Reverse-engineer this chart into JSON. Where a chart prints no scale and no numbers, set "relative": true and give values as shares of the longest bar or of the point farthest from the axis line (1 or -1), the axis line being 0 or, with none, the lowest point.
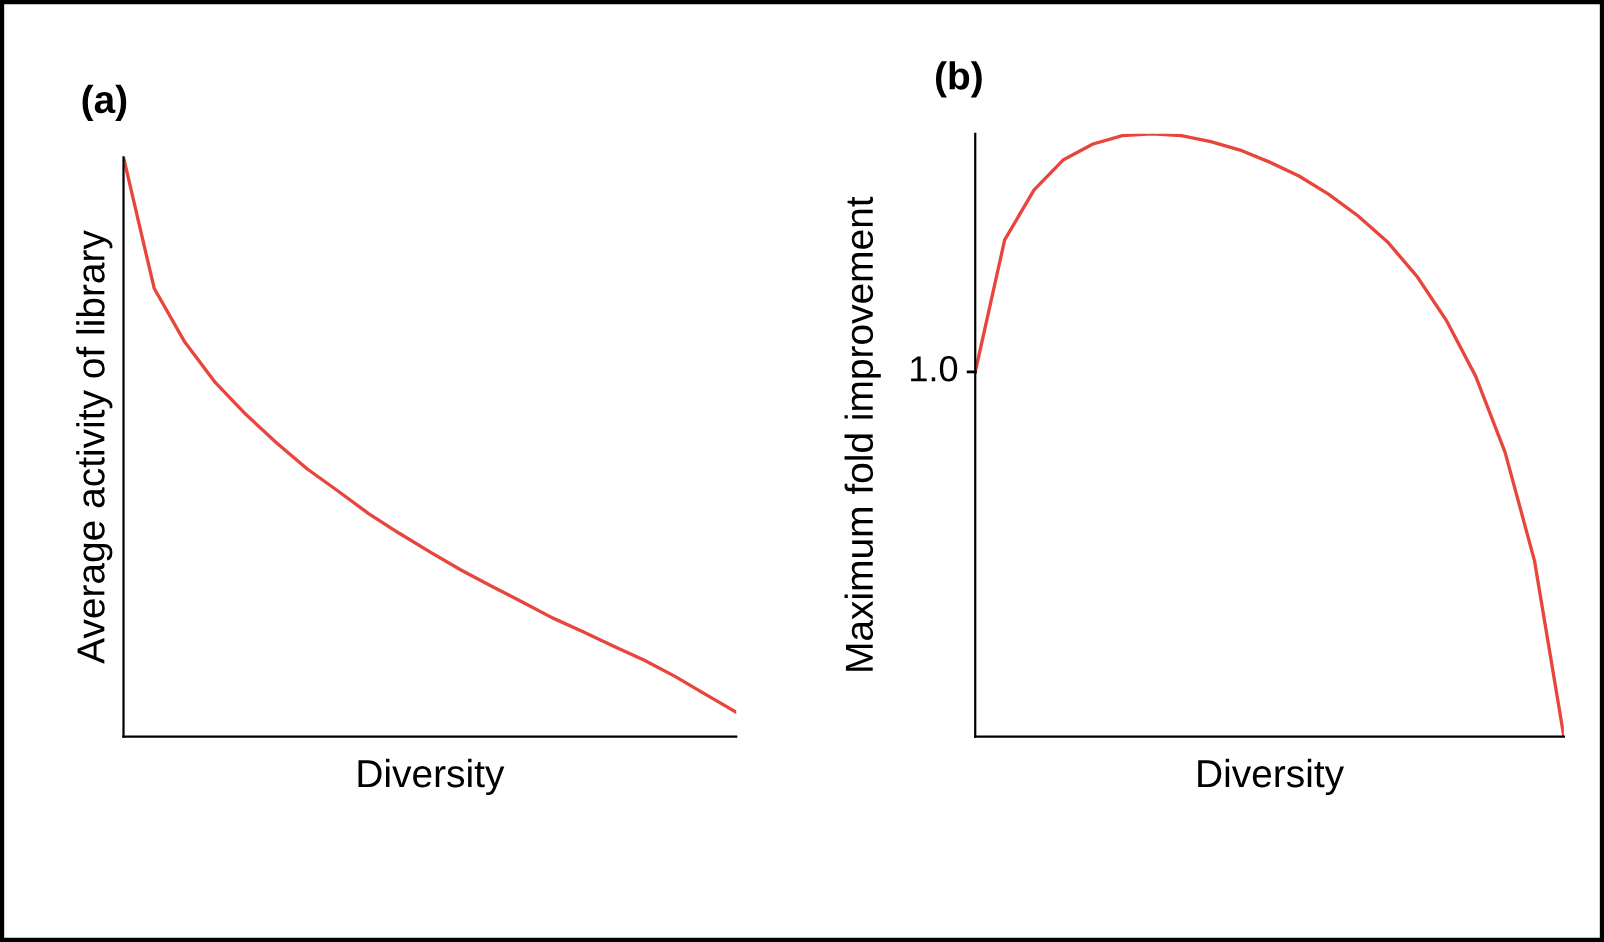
{
  "chart_data": [
    {
      "type": "line",
      "title": "(a)",
      "xlabel": "Diversity",
      "ylabel": "Average activity of library",
      "relative": true,
      "tick_labels": false,
      "categories": [
        null,
        null,
        null,
        null,
        null,
        null,
        null,
        null,
        null,
        null,
        null,
        null,
        null,
        null,
        null,
        null,
        null,
        null,
        null,
        null,
        null
      ],
      "series": [
        {
          "color": "#e8453c",
          "values": [
            1.0,
            0.774,
            0.681,
            0.611,
            0.556,
            0.507,
            0.462,
            0.424,
            0.385,
            0.351,
            0.319,
            0.288,
            0.26,
            0.233,
            0.205,
            0.181,
            0.156,
            0.132,
            0.104,
            0.073,
            0.042
          ]
        }
      ]
    },
    {
      "type": "line",
      "title": "(b)",
      "xlabel": "Diversity",
      "ylabel": "Maximum fold improvement",
      "relative": true,
      "tick_labels": false,
      "categories": [
        null,
        null,
        null,
        null,
        null,
        null,
        null,
        null,
        null,
        null,
        null,
        null,
        null,
        null,
        null,
        null,
        null,
        null,
        null,
        null,
        null
      ],
      "annotations": [
        "1.0"
      ],
      "series": [
        {
          "color": "#e8453c",
          "values": [
            0.605,
            0.824,
            0.907,
            0.957,
            0.983,
            0.997,
            1.0,
            0.997,
            0.987,
            0.973,
            0.953,
            0.93,
            0.9,
            0.864,
            0.821,
            0.764,
            0.691,
            0.598,
            0.472,
            0.292,
            0.0
          ]
        }
      ]
    }
  ]
}
